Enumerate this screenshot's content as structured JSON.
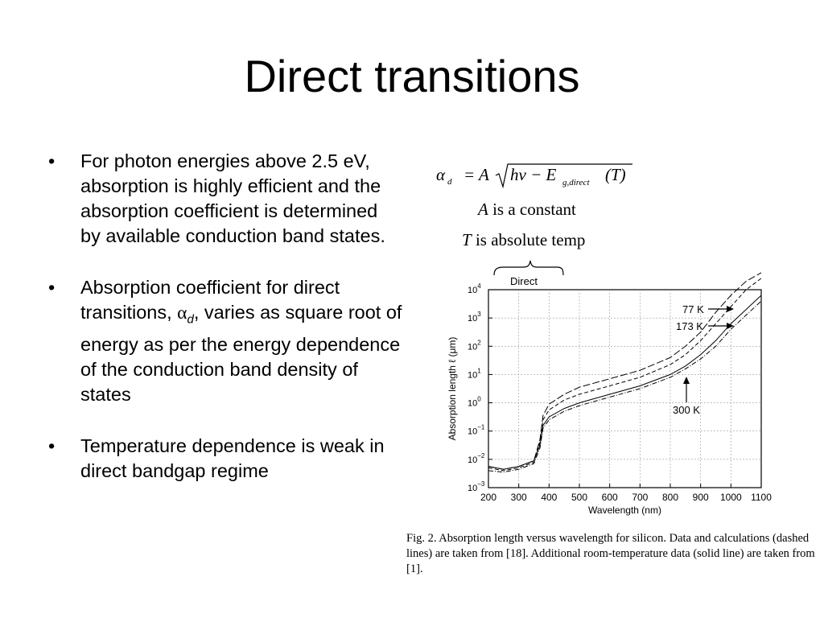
{
  "title": "Direct transitions",
  "bullets": [
    {
      "text": "For photon energies above 2.5 eV, absorption is highly efficient and the absorption coefficient is determined by available conduction band states."
    },
    {
      "text_before": "Absorption coefficient for direct transitions, ",
      "symbol": "α",
      "subscript": "d",
      "text_after": ", varies as square root of energy as per the energy dependence of the conduction band density of states"
    },
    {
      "text": "Temperature dependence is weak in direct bandgap regime"
    }
  ],
  "bullet_glyph": "•",
  "equation": {
    "lhs": "α",
    "lhs_sub": "d",
    "equals": "= A",
    "radicand_1": "hν − E",
    "radicand_sub": "g,direct",
    "radicand_2": "(T)",
    "line1_var": "A",
    "line1_rest": " is a constant",
    "line2_var": "T",
    "line2_rest": " is absolute temp"
  },
  "brace_label": "Direct",
  "chart_data": {
    "type": "line",
    "xlabel": "Wavelength (nm)",
    "ylabel": "Absorption length ℓ (μm)",
    "xlim": [
      200,
      1100
    ],
    "ylim_log10": [
      -3,
      4
    ],
    "x_ticks": [
      "200",
      "300",
      "400",
      "500",
      "600",
      "700",
      "800",
      "900",
      "1000",
      "1100"
    ],
    "y_ticks": [
      {
        "base": "10",
        "exp": "4"
      },
      {
        "base": "10",
        "exp": "3"
      },
      {
        "base": "10",
        "exp": "2"
      },
      {
        "base": "10",
        "exp": "1"
      },
      {
        "base": "10",
        "exp": "0"
      },
      {
        "base": "10",
        "exp": "−1"
      },
      {
        "base": "10",
        "exp": "−2"
      },
      {
        "base": "10",
        "exp": "−3"
      }
    ],
    "grid": true,
    "annotations": [
      "77 K",
      "173 K",
      "300 K"
    ],
    "series": [
      {
        "style": "solid",
        "x": [
          200,
          250,
          300,
          350,
          370,
          380,
          400,
          450,
          500,
          600,
          700,
          800,
          850,
          900,
          950,
          1000,
          1050,
          1100
        ],
        "log10_y": [
          -2.25,
          -2.35,
          -2.25,
          -2.05,
          -1.5,
          -0.8,
          -0.5,
          -0.2,
          0.0,
          0.3,
          0.6,
          1.0,
          1.3,
          1.7,
          2.2,
          2.8,
          3.3,
          3.8
        ]
      },
      {
        "style": "dashed",
        "x": [
          200,
          250,
          300,
          350,
          370,
          380,
          400,
          450,
          500,
          600,
          700,
          800,
          850,
          900,
          950,
          1000,
          1050,
          1100
        ],
        "log10_y": [
          -2.3,
          -2.4,
          -2.3,
          -2.1,
          -1.4,
          -0.6,
          -0.25,
          0.1,
          0.3,
          0.6,
          0.9,
          1.35,
          1.7,
          2.2,
          2.8,
          3.4,
          4.0,
          4.4
        ]
      },
      {
        "style": "long-dash",
        "x": [
          200,
          250,
          300,
          350,
          370,
          380,
          400,
          450,
          500,
          600,
          700,
          800,
          850,
          900,
          950,
          1000,
          1050,
          1100
        ],
        "log10_y": [
          -2.25,
          -2.35,
          -2.25,
          -2.05,
          -1.3,
          -0.45,
          -0.05,
          0.3,
          0.55,
          0.85,
          1.15,
          1.6,
          2.0,
          2.5,
          3.2,
          3.8,
          4.3,
          4.6
        ]
      },
      {
        "style": "dash-dot",
        "x": [
          200,
          250,
          300,
          350,
          370,
          380,
          400,
          450,
          500,
          600,
          700,
          800,
          850,
          900,
          950,
          1000,
          1050,
          1100
        ],
        "log10_y": [
          -2.4,
          -2.45,
          -2.35,
          -2.15,
          -1.6,
          -0.9,
          -0.6,
          -0.3,
          -0.1,
          0.2,
          0.5,
          0.9,
          1.2,
          1.55,
          2.0,
          2.6,
          3.1,
          3.6
        ]
      }
    ]
  },
  "figure_caption": "Fig. 2.    Absorption length versus wavelength for silicon. Data and calculations (dashed lines) are taken from [18]. Additional room-temperature data (solid line) are taken from [1]."
}
